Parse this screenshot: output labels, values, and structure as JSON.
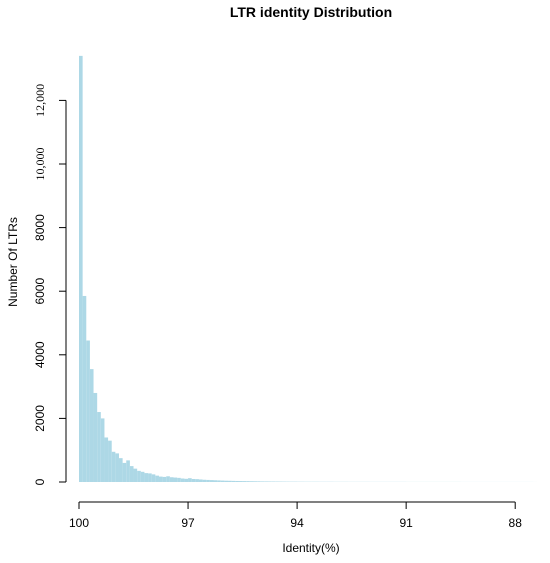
{
  "chart_data": {
    "type": "bar",
    "title": "LTR identity Distribution",
    "xlabel": "Identity(%)",
    "ylabel": "Number Of LTRs",
    "x_reversed": true,
    "xlim": [
      100,
      87
    ],
    "ylim": [
      0,
      13500
    ],
    "x_ticks": [
      {
        "value": 100,
        "label": "100"
      },
      {
        "value": 97,
        "label": "97"
      },
      {
        "value": 94,
        "label": "94"
      },
      {
        "value": 91,
        "label": "91"
      },
      {
        "value": 88,
        "label": "88"
      }
    ],
    "y_ticks": [
      {
        "value": 0,
        "label": "0",
        "serif": false
      },
      {
        "value": 2000,
        "label": "2000",
        "serif": false
      },
      {
        "value": 4000,
        "label": "4000",
        "serif": false
      },
      {
        "value": 6000,
        "label": "6000",
        "serif": false
      },
      {
        "value": 8000,
        "label": "8000",
        "serif": false
      },
      {
        "value": 10000,
        "label": "10,000",
        "serif": true
      },
      {
        "value": 12000,
        "label": "12,000",
        "serif": true
      }
    ],
    "bar_color": "#add8e6",
    "bin_width": 0.1,
    "bins_start": [
      100.0,
      99.9,
      99.8,
      99.7,
      99.6,
      99.5,
      99.4,
      99.3,
      99.2,
      99.1,
      99.0,
      98.9,
      98.8,
      98.7,
      98.6,
      98.5,
      98.4,
      98.3,
      98.2,
      98.1,
      98.0,
      97.9,
      97.8,
      97.7,
      97.6,
      97.5,
      97.4,
      97.3,
      97.2,
      97.1,
      97.0,
      96.9,
      96.8,
      96.7,
      96.6,
      96.5,
      96.4,
      96.3,
      96.2,
      96.1,
      96.0,
      95.9,
      95.8,
      95.7,
      95.6,
      95.5,
      95.4,
      95.3,
      95.2,
      95.1,
      95.0,
      94.9,
      94.8,
      94.7,
      94.6,
      94.5,
      94.4,
      94.3,
      94.2,
      94.1,
      94.0,
      93.8,
      93.6,
      93.4,
      93.2,
      93.0,
      92.8,
      92.6,
      92.4,
      92.2,
      92.0,
      91.5,
      91.0,
      90.5,
      90.0,
      89.5,
      89.0,
      88.5,
      88.0,
      87.5
    ],
    "values": [
      13400,
      5850,
      4450,
      3550,
      2800,
      2200,
      2000,
      1400,
      1300,
      950,
      900,
      750,
      600,
      680,
      500,
      420,
      350,
      320,
      280,
      270,
      240,
      200,
      170,
      160,
      180,
      150,
      140,
      130,
      110,
      100,
      120,
      95,
      90,
      80,
      70,
      65,
      60,
      55,
      50,
      45,
      40,
      38,
      35,
      32,
      30,
      28,
      26,
      24,
      22,
      20,
      18,
      17,
      16,
      15,
      14,
      13,
      12,
      11,
      10,
      10,
      9,
      8,
      8,
      7,
      7,
      6,
      6,
      5,
      5,
      5,
      4,
      4,
      3,
      3,
      3,
      2,
      2,
      2,
      2,
      1
    ]
  }
}
